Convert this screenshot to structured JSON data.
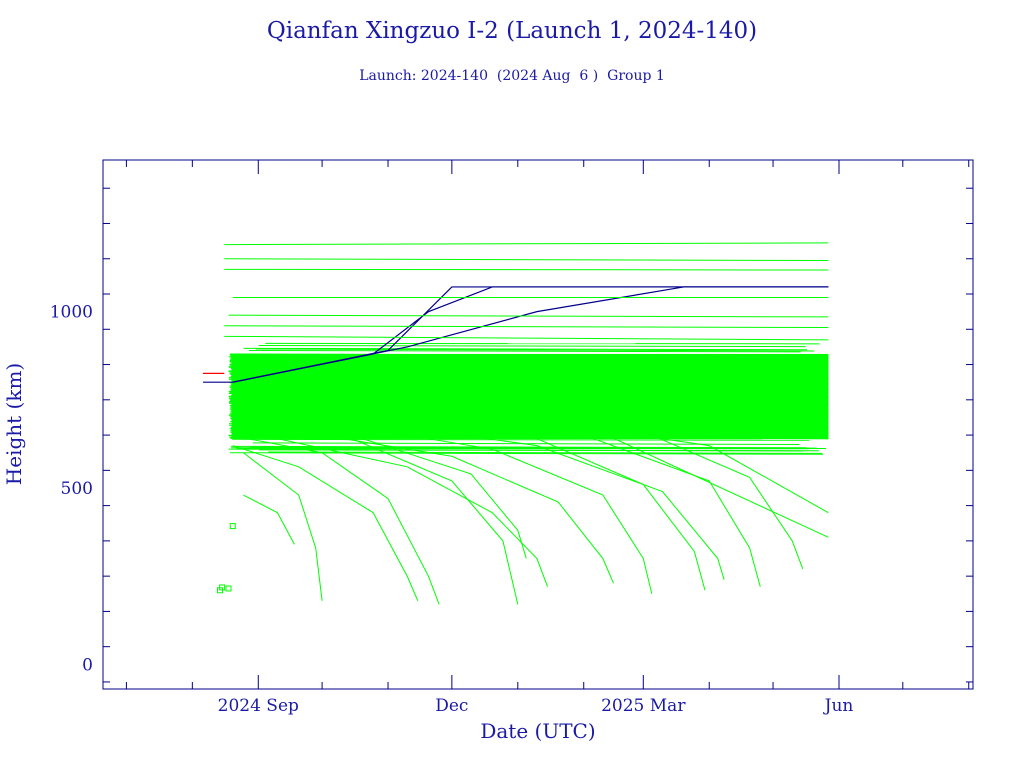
{
  "chart_data": {
    "type": "line",
    "title": "Qianfan Xingzuo I-2 (Launch 1, 2024-140)",
    "subtitle": "Launch: 2024-140  (2024 Aug  6 )  Group 1",
    "xlabel": "Date (UTC)",
    "ylabel": "Height (km)",
    "x_tick_labels": [
      "2024 Sep",
      "Dec",
      "2025 Mar",
      "Jun"
    ],
    "x_tick_dates": [
      "2024-09-01",
      "2024-12-01",
      "2025-03-01",
      "2025-06-01"
    ],
    "y_tick_labels": [
      "0",
      "500",
      "1000"
    ],
    "y_tick_values": [
      0,
      500,
      1000
    ],
    "xlim": [
      "2024-06-20",
      "2025-08-03"
    ],
    "ylim": [
      -70,
      1430
    ],
    "grid": false,
    "series_colors": {
      "debris": "#00ff00",
      "payloads": "#00008b",
      "rocket_body": "#ff0000"
    },
    "series": [
      {
        "color_key": "payloads",
        "points": [
          [
            "2024-08-06",
            800
          ],
          [
            "2024-08-20",
            800
          ],
          [
            "2024-11-01",
            890
          ],
          [
            "2024-12-01",
            1070
          ],
          [
            "2025-05-27",
            1070
          ]
        ]
      },
      {
        "color_key": "payloads",
        "points": [
          [
            "2024-08-20",
            800
          ],
          [
            "2024-10-25",
            880
          ],
          [
            "2024-11-20",
            1000
          ],
          [
            "2024-12-20",
            1070
          ],
          [
            "2025-05-27",
            1070
          ]
        ]
      },
      {
        "color_key": "payloads",
        "points": [
          [
            "2024-08-20",
            800
          ],
          [
            "2024-11-10",
            900
          ],
          [
            "2025-01-10",
            1000
          ],
          [
            "2025-03-20",
            1070
          ],
          [
            "2025-05-27",
            1070
          ]
        ]
      },
      {
        "color_key": "rocket_body",
        "points": [
          [
            "2024-08-06",
            825
          ],
          [
            "2024-08-16",
            825
          ]
        ]
      },
      {
        "color_key": "debris",
        "points": [
          [
            "2024-08-16",
            1190
          ],
          [
            "2025-05-27",
            1195
          ]
        ]
      },
      {
        "color_key": "debris",
        "points": [
          [
            "2024-08-16",
            1150
          ],
          [
            "2025-05-27",
            1145
          ]
        ]
      },
      {
        "color_key": "debris",
        "points": [
          [
            "2024-08-16",
            1120
          ],
          [
            "2025-05-27",
            1118
          ]
        ]
      },
      {
        "color_key": "debris",
        "points": [
          [
            "2024-08-20",
            1040
          ],
          [
            "2025-05-27",
            1040
          ]
        ]
      },
      {
        "color_key": "debris",
        "points": [
          [
            "2024-08-18",
            990
          ],
          [
            "2025-05-27",
            985
          ]
        ]
      },
      {
        "color_key": "debris",
        "points": [
          [
            "2024-08-16",
            960
          ],
          [
            "2025-05-27",
            955
          ]
        ]
      },
      {
        "color_key": "debris",
        "points": [
          [
            "2024-08-16",
            930
          ],
          [
            "2025-05-27",
            920
          ]
        ]
      },
      {
        "color_key": "debris",
        "points": [
          [
            "2024-08-18",
            650
          ],
          [
            "2024-10-01",
            600
          ],
          [
            "2024-11-01",
            470
          ],
          [
            "2024-11-20",
            250
          ],
          [
            "2024-11-25",
            170
          ]
        ]
      },
      {
        "color_key": "debris",
        "points": [
          [
            "2024-08-20",
            620
          ],
          [
            "2024-09-20",
            560
          ],
          [
            "2024-10-25",
            430
          ],
          [
            "2024-11-10",
            250
          ],
          [
            "2024-11-15",
            180
          ]
        ]
      },
      {
        "color_key": "debris",
        "points": [
          [
            "2024-08-25",
            600
          ],
          [
            "2024-09-20",
            480
          ],
          [
            "2024-09-28",
            330
          ],
          [
            "2024-10-01",
            180
          ]
        ]
      },
      {
        "color_key": "debris",
        "points": [
          [
            "2024-08-25",
            480
          ],
          [
            "2024-09-10",
            430
          ],
          [
            "2024-09-18",
            340
          ]
        ]
      },
      {
        "color_key": "debris",
        "points": [
          [
            "2024-08-30",
            700
          ],
          [
            "2024-10-15",
            640
          ],
          [
            "2024-12-01",
            520
          ],
          [
            "2024-12-25",
            350
          ],
          [
            "2025-01-01",
            170
          ]
        ]
      },
      {
        "color_key": "debris",
        "points": [
          [
            "2024-09-10",
            640
          ],
          [
            "2024-11-10",
            560
          ],
          [
            "2024-12-20",
            430
          ],
          [
            "2025-01-10",
            300
          ],
          [
            "2025-01-15",
            220
          ]
        ]
      },
      {
        "color_key": "debris",
        "points": [
          [
            "2024-09-20",
            660
          ],
          [
            "2024-12-01",
            590
          ],
          [
            "2025-01-20",
            460
          ],
          [
            "2025-02-10",
            300
          ],
          [
            "2025-02-15",
            230
          ]
        ]
      },
      {
        "color_key": "debris",
        "points": [
          [
            "2024-10-10",
            680
          ],
          [
            "2024-12-20",
            610
          ],
          [
            "2025-02-10",
            480
          ],
          [
            "2025-03-01",
            300
          ],
          [
            "2025-03-05",
            200
          ]
        ]
      },
      {
        "color_key": "debris",
        "points": [
          [
            "2024-11-01",
            700
          ],
          [
            "2025-01-10",
            640
          ],
          [
            "2025-03-01",
            510
          ],
          [
            "2025-03-25",
            320
          ],
          [
            "2025-03-30",
            210
          ]
        ]
      },
      {
        "color_key": "debris",
        "points": [
          [
            "2024-11-20",
            720
          ],
          [
            "2025-02-01",
            650
          ],
          [
            "2025-04-01",
            520
          ],
          [
            "2025-04-20",
            330
          ],
          [
            "2025-04-25",
            220
          ]
        ]
      },
      {
        "color_key": "debris",
        "points": [
          [
            "2024-12-20",
            720
          ],
          [
            "2025-03-01",
            660
          ],
          [
            "2025-04-20",
            530
          ],
          [
            "2025-05-10",
            350
          ],
          [
            "2025-05-15",
            270
          ]
        ]
      },
      {
        "color_key": "debris",
        "points": [
          [
            "2024-09-01",
            760
          ],
          [
            "2025-01-01",
            700
          ],
          [
            "2025-04-01",
            620
          ],
          [
            "2025-05-27",
            430
          ]
        ]
      },
      {
        "color_key": "debris",
        "points": [
          [
            "2024-09-01",
            740
          ],
          [
            "2025-02-01",
            680
          ],
          [
            "2025-05-27",
            360
          ]
        ]
      },
      {
        "color_key": "debris",
        "points": [
          [
            "2024-08-20",
            700
          ],
          [
            "2024-10-20",
            640
          ],
          [
            "2024-12-10",
            540
          ],
          [
            "2025-01-01",
            380
          ],
          [
            "2025-01-05",
            300
          ]
        ]
      },
      {
        "color_key": "debris",
        "points": [
          [
            "2024-10-20",
            690
          ],
          [
            "2025-01-10",
            620
          ],
          [
            "2025-03-10",
            490
          ],
          [
            "2025-04-05",
            300
          ],
          [
            "2025-04-08",
            240
          ]
        ]
      }
    ],
    "debris_band": {
      "start": "2024-08-18",
      "end": "2025-05-27",
      "top": 910,
      "bottom": 600,
      "band_top": 880,
      "band_bottom": 640
    }
  }
}
